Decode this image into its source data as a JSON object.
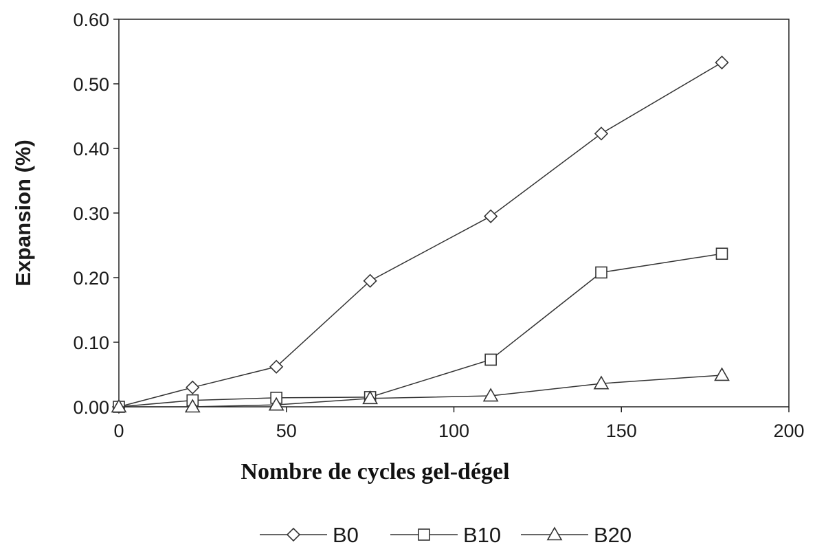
{
  "chart_data": {
    "type": "line",
    "xlabel": "Nombre de cycles gel-dégel",
    "ylabel": "Expansion (%)",
    "xlim": [
      0,
      200
    ],
    "ylim": [
      0,
      0.6
    ],
    "x_ticks": [
      0,
      50,
      100,
      150,
      200
    ],
    "x_tick_labels": [
      "0",
      "50",
      "100",
      "150",
      "200"
    ],
    "y_ticks": [
      0,
      0.1,
      0.2,
      0.3,
      0.4,
      0.5,
      0.6
    ],
    "y_tick_labels": [
      "0.00",
      "0.10",
      "0.20",
      "0.30",
      "0.40",
      "0.50",
      "0.60"
    ],
    "grid": false,
    "legend_position": "bottom-center",
    "line_color": "#333333",
    "series": [
      {
        "name": "B0",
        "marker": "diamond",
        "x": [
          0,
          22,
          47,
          75,
          111,
          144,
          180
        ],
        "y": [
          0.0,
          0.03,
          0.062,
          0.195,
          0.295,
          0.423,
          0.533
        ]
      },
      {
        "name": "B10",
        "marker": "square",
        "x": [
          0,
          22,
          47,
          75,
          111,
          144,
          180
        ],
        "y": [
          0.0,
          0.01,
          0.014,
          0.015,
          0.073,
          0.208,
          0.237
        ]
      },
      {
        "name": "B20",
        "marker": "triangle",
        "x": [
          0,
          22,
          47,
          75,
          111,
          144,
          180
        ],
        "y": [
          0.0,
          0.0,
          0.003,
          0.013,
          0.017,
          0.036,
          0.049
        ]
      }
    ]
  }
}
